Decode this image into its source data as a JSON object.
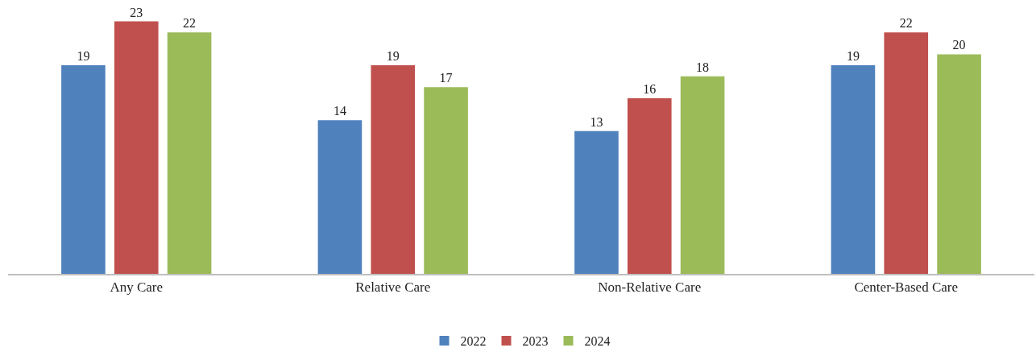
{
  "chart_data": {
    "type": "bar",
    "categories": [
      "Any Care",
      "Relative Care",
      "Non-Relative Care",
      "Center-Based Care"
    ],
    "series": [
      {
        "name": "2022",
        "color": "#4f81bd",
        "values": [
          19,
          14,
          13,
          19
        ]
      },
      {
        "name": "2023",
        "color": "#c0504d",
        "values": [
          23,
          19,
          16,
          22
        ]
      },
      {
        "name": "2024",
        "color": "#9bbb59",
        "values": [
          22,
          17,
          18,
          20
        ]
      }
    ],
    "data_labels": true,
    "tick_labels": "x",
    "grid": false,
    "legend": "bottom"
  }
}
